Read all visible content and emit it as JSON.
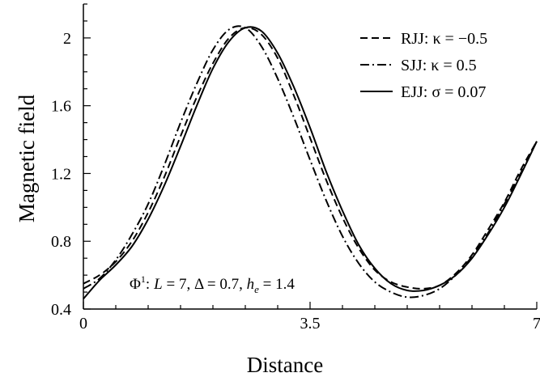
{
  "chart_data": {
    "type": "line",
    "xlabel": "Distance",
    "ylabel": "Magnetic field",
    "xlim": [
      0,
      7
    ],
    "ylim": [
      0.4,
      2.2
    ],
    "xticks": [
      0,
      3.5,
      7
    ],
    "xtick_labels": [
      "0",
      "3.5",
      "7"
    ],
    "yticks": [
      0.4,
      0.8,
      1.2,
      1.6,
      2.0
    ],
    "ytick_labels": [
      "0.4",
      "0.8",
      "1.2",
      "1.6",
      "2"
    ],
    "grid": false,
    "legend_position": "top-right",
    "series": [
      {
        "name": "RJJ: κ = −0.5",
        "label_prefix": "RJJ:",
        "label_value": "κ = −0.5",
        "style": "dashed",
        "x": [
          0,
          0.25,
          0.5,
          0.75,
          1.0,
          1.25,
          1.5,
          1.75,
          2.0,
          2.25,
          2.5,
          2.75,
          3.0,
          3.25,
          3.5,
          3.75,
          4.0,
          4.25,
          4.5,
          4.75,
          5.0,
          5.25,
          5.5,
          5.75,
          6.0,
          6.25,
          6.5,
          6.75,
          7.0
        ],
        "y": [
          0.55,
          0.6,
          0.68,
          0.8,
          0.97,
          1.18,
          1.42,
          1.65,
          1.85,
          2.0,
          2.06,
          2.02,
          1.88,
          1.66,
          1.41,
          1.16,
          0.94,
          0.76,
          0.63,
          0.56,
          0.53,
          0.52,
          0.54,
          0.61,
          0.72,
          0.87,
          1.03,
          1.22,
          1.39
        ]
      },
      {
        "name": "SJJ: κ = 0.5",
        "label_prefix": "SJJ:",
        "label_value": "κ = 0.5",
        "style": "dash-dot",
        "x": [
          0,
          0.25,
          0.5,
          0.75,
          1.0,
          1.25,
          1.5,
          1.75,
          2.0,
          2.25,
          2.5,
          2.75,
          3.0,
          3.25,
          3.5,
          3.75,
          4.0,
          4.25,
          4.5,
          4.75,
          5.0,
          5.25,
          5.5,
          5.75,
          6.0,
          6.25,
          6.5,
          6.75,
          7.0
        ],
        "y": [
          0.52,
          0.58,
          0.69,
          0.84,
          1.02,
          1.25,
          1.5,
          1.73,
          1.93,
          2.05,
          2.06,
          1.95,
          1.76,
          1.53,
          1.28,
          1.04,
          0.83,
          0.67,
          0.56,
          0.5,
          0.47,
          0.48,
          0.52,
          0.6,
          0.71,
          0.85,
          1.02,
          1.2,
          1.39
        ]
      },
      {
        "name": "EJJ: σ = 0.07",
        "label_prefix": "EJJ:",
        "label_value": "σ = 0.07",
        "style": "solid",
        "x": [
          0,
          0.25,
          0.5,
          0.75,
          1.0,
          1.25,
          1.5,
          1.75,
          2.0,
          2.25,
          2.5,
          2.75,
          3.0,
          3.25,
          3.5,
          3.75,
          4.0,
          4.25,
          4.5,
          4.75,
          5.0,
          5.25,
          5.5,
          5.75,
          6.0,
          6.25,
          6.5,
          6.75,
          7.0
        ],
        "y": [
          0.46,
          0.57,
          0.66,
          0.77,
          0.93,
          1.13,
          1.36,
          1.6,
          1.82,
          1.98,
          2.06,
          2.04,
          1.91,
          1.71,
          1.47,
          1.21,
          0.98,
          0.78,
          0.64,
          0.55,
          0.51,
          0.51,
          0.54,
          0.6,
          0.7,
          0.84,
          1.0,
          1.19,
          1.39
        ]
      }
    ],
    "annotation": {
      "phi": "Φ",
      "sup": "1",
      "colon": ":",
      "L_var": "L",
      "L_eq": " = 7, ",
      "delta": "Δ = 0.7, ",
      "h_var": "h",
      "h_sub": "e",
      "h_eq": " = 1.4"
    }
  }
}
